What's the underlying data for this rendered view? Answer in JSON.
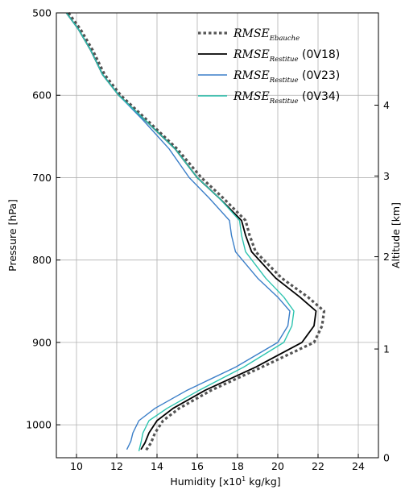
{
  "chart_data": {
    "type": "line",
    "xlabel": "Humidity [x10",
    "xlabel_sup": "1",
    "xlabel_unit": " kg/kg]",
    "ylabel": "Pressure [hPa]",
    "y2label": "Altitude [km]",
    "xlim": [
      9,
      25
    ],
    "ylim": [
      500,
      1040
    ],
    "y_inverted": true,
    "x_ticks": [
      10,
      12,
      14,
      16,
      18,
      20,
      22,
      24
    ],
    "x_tick_labels": [
      "10",
      "12",
      "14",
      "16",
      "18",
      "20",
      "22",
      "24"
    ],
    "y_ticks": [
      500,
      600,
      700,
      800,
      900,
      1000
    ],
    "y_tick_labels": [
      "500",
      "600",
      "700",
      "800",
      "900",
      "1000"
    ],
    "y2_ticks": [
      {
        "pressure": 1040,
        "label": "0"
      },
      {
        "pressure": 908,
        "label": "1"
      },
      {
        "pressure": 796,
        "label": "2"
      },
      {
        "pressure": 698,
        "label": "3"
      },
      {
        "pressure": 612,
        "label": "4"
      }
    ],
    "grid": true,
    "legend_position": "top-right",
    "series": [
      {
        "name": "RMSE",
        "name_sub": "Ebauche",
        "name_suffix": "",
        "color": "#555555",
        "style": "dotted",
        "points": [
          [
            9.6,
            500
          ],
          [
            10.2,
            520
          ],
          [
            10.8,
            545
          ],
          [
            11.4,
            575
          ],
          [
            12.2,
            600
          ],
          [
            13.5,
            630
          ],
          [
            15.0,
            665
          ],
          [
            16.2,
            700
          ],
          [
            17.3,
            725
          ],
          [
            18.4,
            752
          ],
          [
            18.6,
            770
          ],
          [
            18.9,
            790
          ],
          [
            20.2,
            822
          ],
          [
            21.5,
            845
          ],
          [
            22.3,
            862
          ],
          [
            22.2,
            880
          ],
          [
            21.8,
            900
          ],
          [
            19.2,
            930
          ],
          [
            16.7,
            958
          ],
          [
            15.1,
            980
          ],
          [
            14.3,
            995
          ],
          [
            13.9,
            1010
          ],
          [
            13.7,
            1022
          ],
          [
            13.4,
            1033
          ]
        ]
      },
      {
        "name": "RMSE",
        "name_sub": "Restitue",
        "name_suffix": " (0V18)",
        "color": "#000000",
        "style": "solid",
        "points": [
          [
            9.5,
            500
          ],
          [
            10.1,
            520
          ],
          [
            10.7,
            545
          ],
          [
            11.3,
            575
          ],
          [
            12.1,
            600
          ],
          [
            13.4,
            630
          ],
          [
            14.9,
            665
          ],
          [
            16.0,
            700
          ],
          [
            17.1,
            725
          ],
          [
            18.2,
            752
          ],
          [
            18.4,
            770
          ],
          [
            18.7,
            790
          ],
          [
            19.9,
            822
          ],
          [
            21.1,
            845
          ],
          [
            21.9,
            862
          ],
          [
            21.8,
            880
          ],
          [
            21.2,
            900
          ],
          [
            18.9,
            930
          ],
          [
            16.4,
            958
          ],
          [
            14.8,
            980
          ],
          [
            14.0,
            995
          ],
          [
            13.6,
            1010
          ],
          [
            13.4,
            1022
          ],
          [
            13.2,
            1030
          ]
        ]
      },
      {
        "name": "RMSE",
        "name_sub": "Restitue",
        "name_suffix": " (0V23)",
        "color": "#3a7ec8",
        "style": "solid",
        "points": [
          [
            9.5,
            500
          ],
          [
            10.1,
            520
          ],
          [
            10.7,
            545
          ],
          [
            11.3,
            575
          ],
          [
            12.1,
            600
          ],
          [
            13.3,
            630
          ],
          [
            14.6,
            665
          ],
          [
            15.6,
            700
          ],
          [
            16.6,
            725
          ],
          [
            17.6,
            752
          ],
          [
            17.7,
            770
          ],
          [
            17.9,
            790
          ],
          [
            19.0,
            822
          ],
          [
            20.0,
            845
          ],
          [
            20.6,
            862
          ],
          [
            20.5,
            880
          ],
          [
            20.0,
            900
          ],
          [
            17.9,
            930
          ],
          [
            15.5,
            958
          ],
          [
            13.9,
            980
          ],
          [
            13.1,
            995
          ],
          [
            12.8,
            1010
          ],
          [
            12.7,
            1020
          ],
          [
            12.5,
            1030
          ]
        ]
      },
      {
        "name": "RMSE",
        "name_sub": "Restitue",
        "name_suffix": " (0V34)",
        "color": "#2ec4b0",
        "style": "solid",
        "points": [
          [
            9.5,
            500
          ],
          [
            10.1,
            520
          ],
          [
            10.7,
            545
          ],
          [
            11.3,
            575
          ],
          [
            12.1,
            600
          ],
          [
            13.4,
            630
          ],
          [
            14.9,
            665
          ],
          [
            16.0,
            700
          ],
          [
            17.1,
            725
          ],
          [
            18.1,
            752
          ],
          [
            18.2,
            770
          ],
          [
            18.4,
            790
          ],
          [
            19.4,
            822
          ],
          [
            20.3,
            845
          ],
          [
            20.8,
            862
          ],
          [
            20.7,
            880
          ],
          [
            20.3,
            900
          ],
          [
            18.3,
            930
          ],
          [
            16.1,
            958
          ],
          [
            14.5,
            980
          ],
          [
            13.6,
            995
          ],
          [
            13.3,
            1010
          ],
          [
            13.2,
            1022
          ],
          [
            13.1,
            1032
          ]
        ]
      }
    ]
  }
}
